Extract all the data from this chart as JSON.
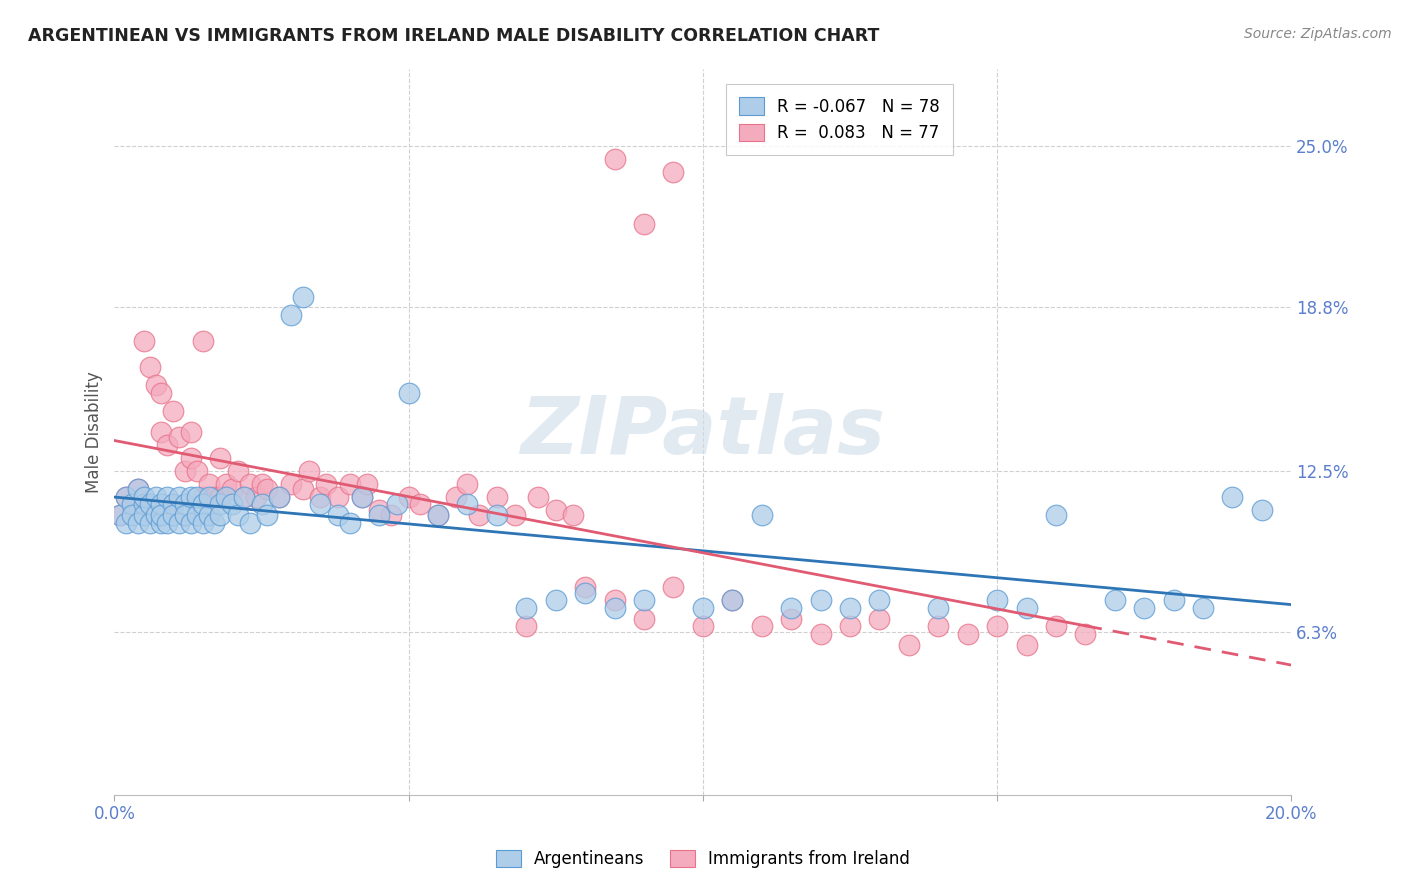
{
  "title": "ARGENTINEAN VS IMMIGRANTS FROM IRELAND MALE DISABILITY CORRELATION CHART",
  "source": "Source: ZipAtlas.com",
  "ylabel": "Male Disability",
  "x_min": 0.0,
  "x_max": 0.2,
  "y_min": 0.0,
  "y_max": 0.28,
  "y_tick_labels_right": [
    "6.3%",
    "12.5%",
    "18.8%",
    "25.0%"
  ],
  "y_tick_values_right": [
    0.063,
    0.125,
    0.188,
    0.25
  ],
  "legend_blue_r": "-0.067",
  "legend_blue_n": "78",
  "legend_pink_r": "0.083",
  "legend_pink_n": "77",
  "blue_color": "#aecde8",
  "pink_color": "#f4abbe",
  "blue_edge_color": "#5b9bd5",
  "pink_edge_color": "#e8728a",
  "blue_line_color": "#2e75b6",
  "pink_line_color": "#e05a72",
  "watermark": "ZIPatlas",
  "blue_scatter_x": [
    0.001,
    0.002,
    0.002,
    0.003,
    0.003,
    0.004,
    0.004,
    0.005,
    0.005,
    0.005,
    0.006,
    0.006,
    0.007,
    0.007,
    0.008,
    0.008,
    0.008,
    0.009,
    0.009,
    0.01,
    0.01,
    0.011,
    0.011,
    0.012,
    0.012,
    0.013,
    0.013,
    0.014,
    0.014,
    0.015,
    0.015,
    0.016,
    0.016,
    0.017,
    0.018,
    0.018,
    0.019,
    0.02,
    0.021,
    0.022,
    0.023,
    0.025,
    0.026,
    0.028,
    0.03,
    0.032,
    0.035,
    0.038,
    0.04,
    0.042,
    0.045,
    0.048,
    0.05,
    0.055,
    0.06,
    0.065,
    0.07,
    0.075,
    0.08,
    0.085,
    0.09,
    0.1,
    0.105,
    0.11,
    0.115,
    0.12,
    0.125,
    0.13,
    0.14,
    0.15,
    0.155,
    0.16,
    0.17,
    0.175,
    0.18,
    0.185,
    0.19,
    0.195
  ],
  "blue_scatter_y": [
    0.108,
    0.115,
    0.105,
    0.112,
    0.108,
    0.118,
    0.105,
    0.112,
    0.108,
    0.115,
    0.105,
    0.112,
    0.108,
    0.115,
    0.105,
    0.112,
    0.108,
    0.115,
    0.105,
    0.112,
    0.108,
    0.115,
    0.105,
    0.112,
    0.108,
    0.115,
    0.105,
    0.108,
    0.115,
    0.112,
    0.105,
    0.108,
    0.115,
    0.105,
    0.112,
    0.108,
    0.115,
    0.112,
    0.108,
    0.115,
    0.105,
    0.112,
    0.108,
    0.115,
    0.185,
    0.192,
    0.112,
    0.108,
    0.105,
    0.115,
    0.108,
    0.112,
    0.155,
    0.108,
    0.112,
    0.108,
    0.072,
    0.075,
    0.078,
    0.072,
    0.075,
    0.072,
    0.075,
    0.108,
    0.072,
    0.075,
    0.072,
    0.075,
    0.072,
    0.075,
    0.072,
    0.108,
    0.075,
    0.072,
    0.075,
    0.072,
    0.115,
    0.11
  ],
  "pink_scatter_x": [
    0.001,
    0.002,
    0.003,
    0.004,
    0.005,
    0.005,
    0.006,
    0.007,
    0.008,
    0.008,
    0.009,
    0.01,
    0.01,
    0.011,
    0.012,
    0.013,
    0.013,
    0.014,
    0.015,
    0.015,
    0.016,
    0.017,
    0.018,
    0.018,
    0.019,
    0.02,
    0.021,
    0.022,
    0.023,
    0.024,
    0.025,
    0.026,
    0.028,
    0.03,
    0.032,
    0.033,
    0.035,
    0.036,
    0.038,
    0.04,
    0.042,
    0.043,
    0.045,
    0.047,
    0.05,
    0.052,
    0.055,
    0.058,
    0.06,
    0.062,
    0.065,
    0.068,
    0.07,
    0.072,
    0.075,
    0.078,
    0.08,
    0.085,
    0.09,
    0.095,
    0.1,
    0.105,
    0.11,
    0.115,
    0.12,
    0.125,
    0.13,
    0.135,
    0.14,
    0.145,
    0.15,
    0.155,
    0.16,
    0.165,
    0.085,
    0.09,
    0.095
  ],
  "pink_scatter_y": [
    0.108,
    0.115,
    0.112,
    0.118,
    0.175,
    0.112,
    0.165,
    0.158,
    0.14,
    0.155,
    0.135,
    0.148,
    0.112,
    0.138,
    0.125,
    0.13,
    0.14,
    0.125,
    0.175,
    0.115,
    0.12,
    0.115,
    0.13,
    0.115,
    0.12,
    0.118,
    0.125,
    0.115,
    0.12,
    0.115,
    0.12,
    0.118,
    0.115,
    0.12,
    0.118,
    0.125,
    0.115,
    0.12,
    0.115,
    0.12,
    0.115,
    0.12,
    0.11,
    0.108,
    0.115,
    0.112,
    0.108,
    0.115,
    0.12,
    0.108,
    0.115,
    0.108,
    0.065,
    0.115,
    0.11,
    0.108,
    0.08,
    0.075,
    0.068,
    0.08,
    0.065,
    0.075,
    0.065,
    0.068,
    0.062,
    0.065,
    0.068,
    0.058,
    0.065,
    0.062,
    0.065,
    0.058,
    0.065,
    0.062,
    0.245,
    0.22,
    0.24
  ]
}
